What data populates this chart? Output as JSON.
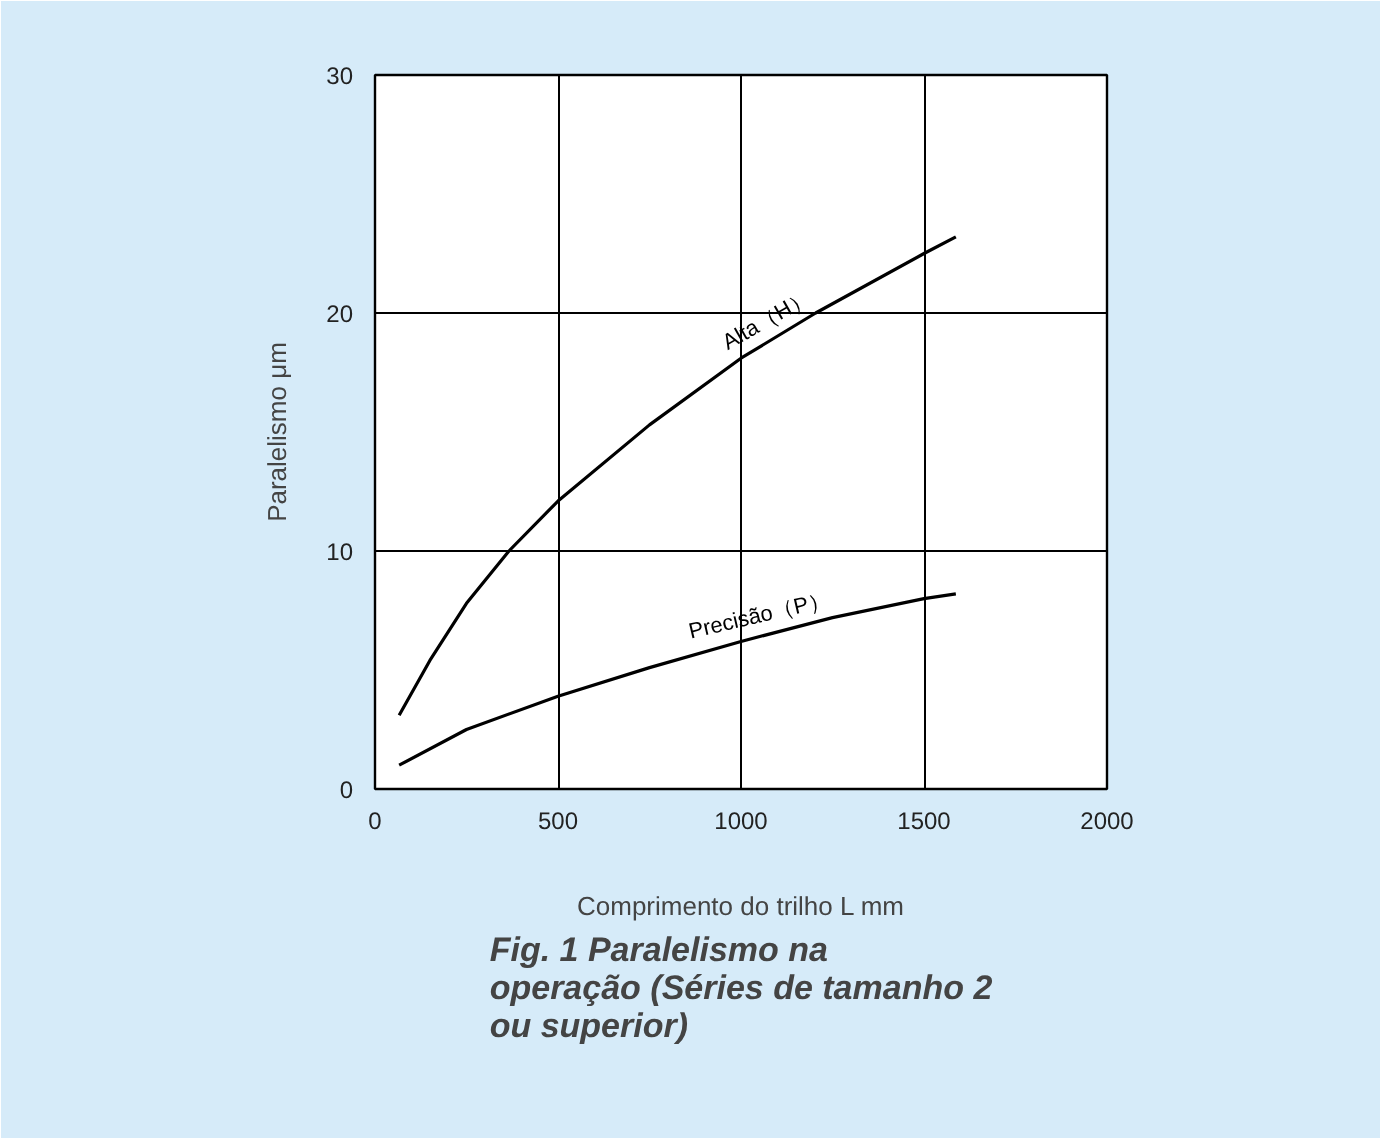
{
  "chart_data": {
    "type": "line",
    "title": "Fig. 1  Paralelismo na operação (Séries de tamanho 2 ou superior)",
    "xlabel": "Comprimento do trilho L mm",
    "ylabel": "Paralelismo μm",
    "xlim": [
      0,
      2000
    ],
    "ylim": [
      0,
      30
    ],
    "xticks": [
      0,
      500,
      1000,
      1500,
      2000
    ],
    "yticks": [
      0,
      10,
      20,
      30
    ],
    "grid": true,
    "series": [
      {
        "name": "Alta（H）",
        "color": "#000000",
        "x": [
          66,
          150,
          250,
          366,
          500,
          750,
          1000,
          1204,
          1500,
          1587
        ],
        "values": [
          3.1,
          5.4,
          7.8,
          10,
          12.1,
          15.3,
          18.1,
          20,
          22.5,
          23.2
        ]
      },
      {
        "name": "Precisão（P）",
        "color": "#000000",
        "x": [
          66,
          250,
          500,
          750,
          1000,
          1250,
          1500,
          1587
        ],
        "values": [
          1.0,
          2.5,
          3.9,
          5.1,
          6.2,
          7.2,
          8.0,
          8.2
        ]
      }
    ]
  }
}
